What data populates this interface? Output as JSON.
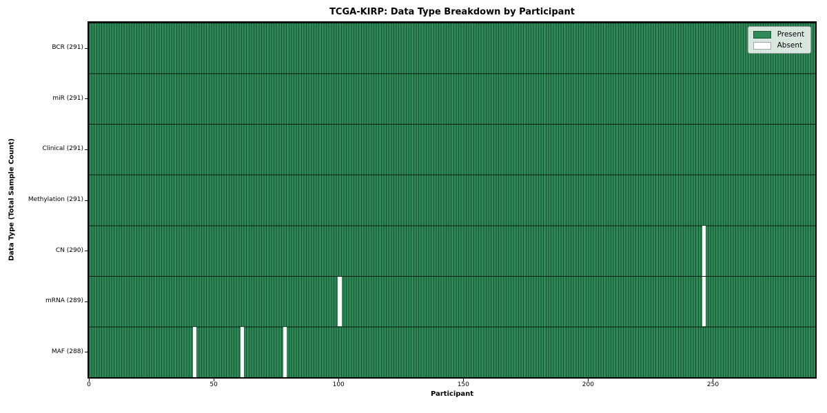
{
  "chart_data": {
    "type": "heatmap",
    "title": "TCGA-KIRP: Data Type Breakdown by Participant",
    "xlabel": "Participant",
    "ylabel": "Data Type (Total Sample Count)",
    "x_range": [
      0,
      291
    ],
    "x_ticks": [
      0,
      50,
      100,
      150,
      200,
      250
    ],
    "n_participants": 291,
    "rows": [
      {
        "label": "BCR (291)",
        "total": 291,
        "absent_participants": []
      },
      {
        "label": "miR (291)",
        "total": 291,
        "absent_participants": []
      },
      {
        "label": "Clinical (291)",
        "total": 291,
        "absent_participants": []
      },
      {
        "label": "Methylation (291)",
        "total": 291,
        "absent_participants": []
      },
      {
        "label": "CN (290)",
        "total": 290,
        "absent_participants": [
          246
        ]
      },
      {
        "label": "mRNA (289)",
        "total": 289,
        "absent_participants": [
          100,
          246
        ]
      },
      {
        "label": "MAF (288)",
        "total": 288,
        "absent_participants": [
          42,
          61,
          78
        ]
      }
    ],
    "legend": [
      {
        "label": "Present",
        "color": "#2e8b57"
      },
      {
        "label": "Absent",
        "color": "#ffffff"
      }
    ],
    "colors": {
      "present": "#2e8b57",
      "absent": "#ffffff",
      "cell_edge": "#1c5434",
      "row_divider": "#0d2218",
      "spine": "#000000"
    },
    "legend_position": "upper right",
    "grid": "cell-edges"
  }
}
